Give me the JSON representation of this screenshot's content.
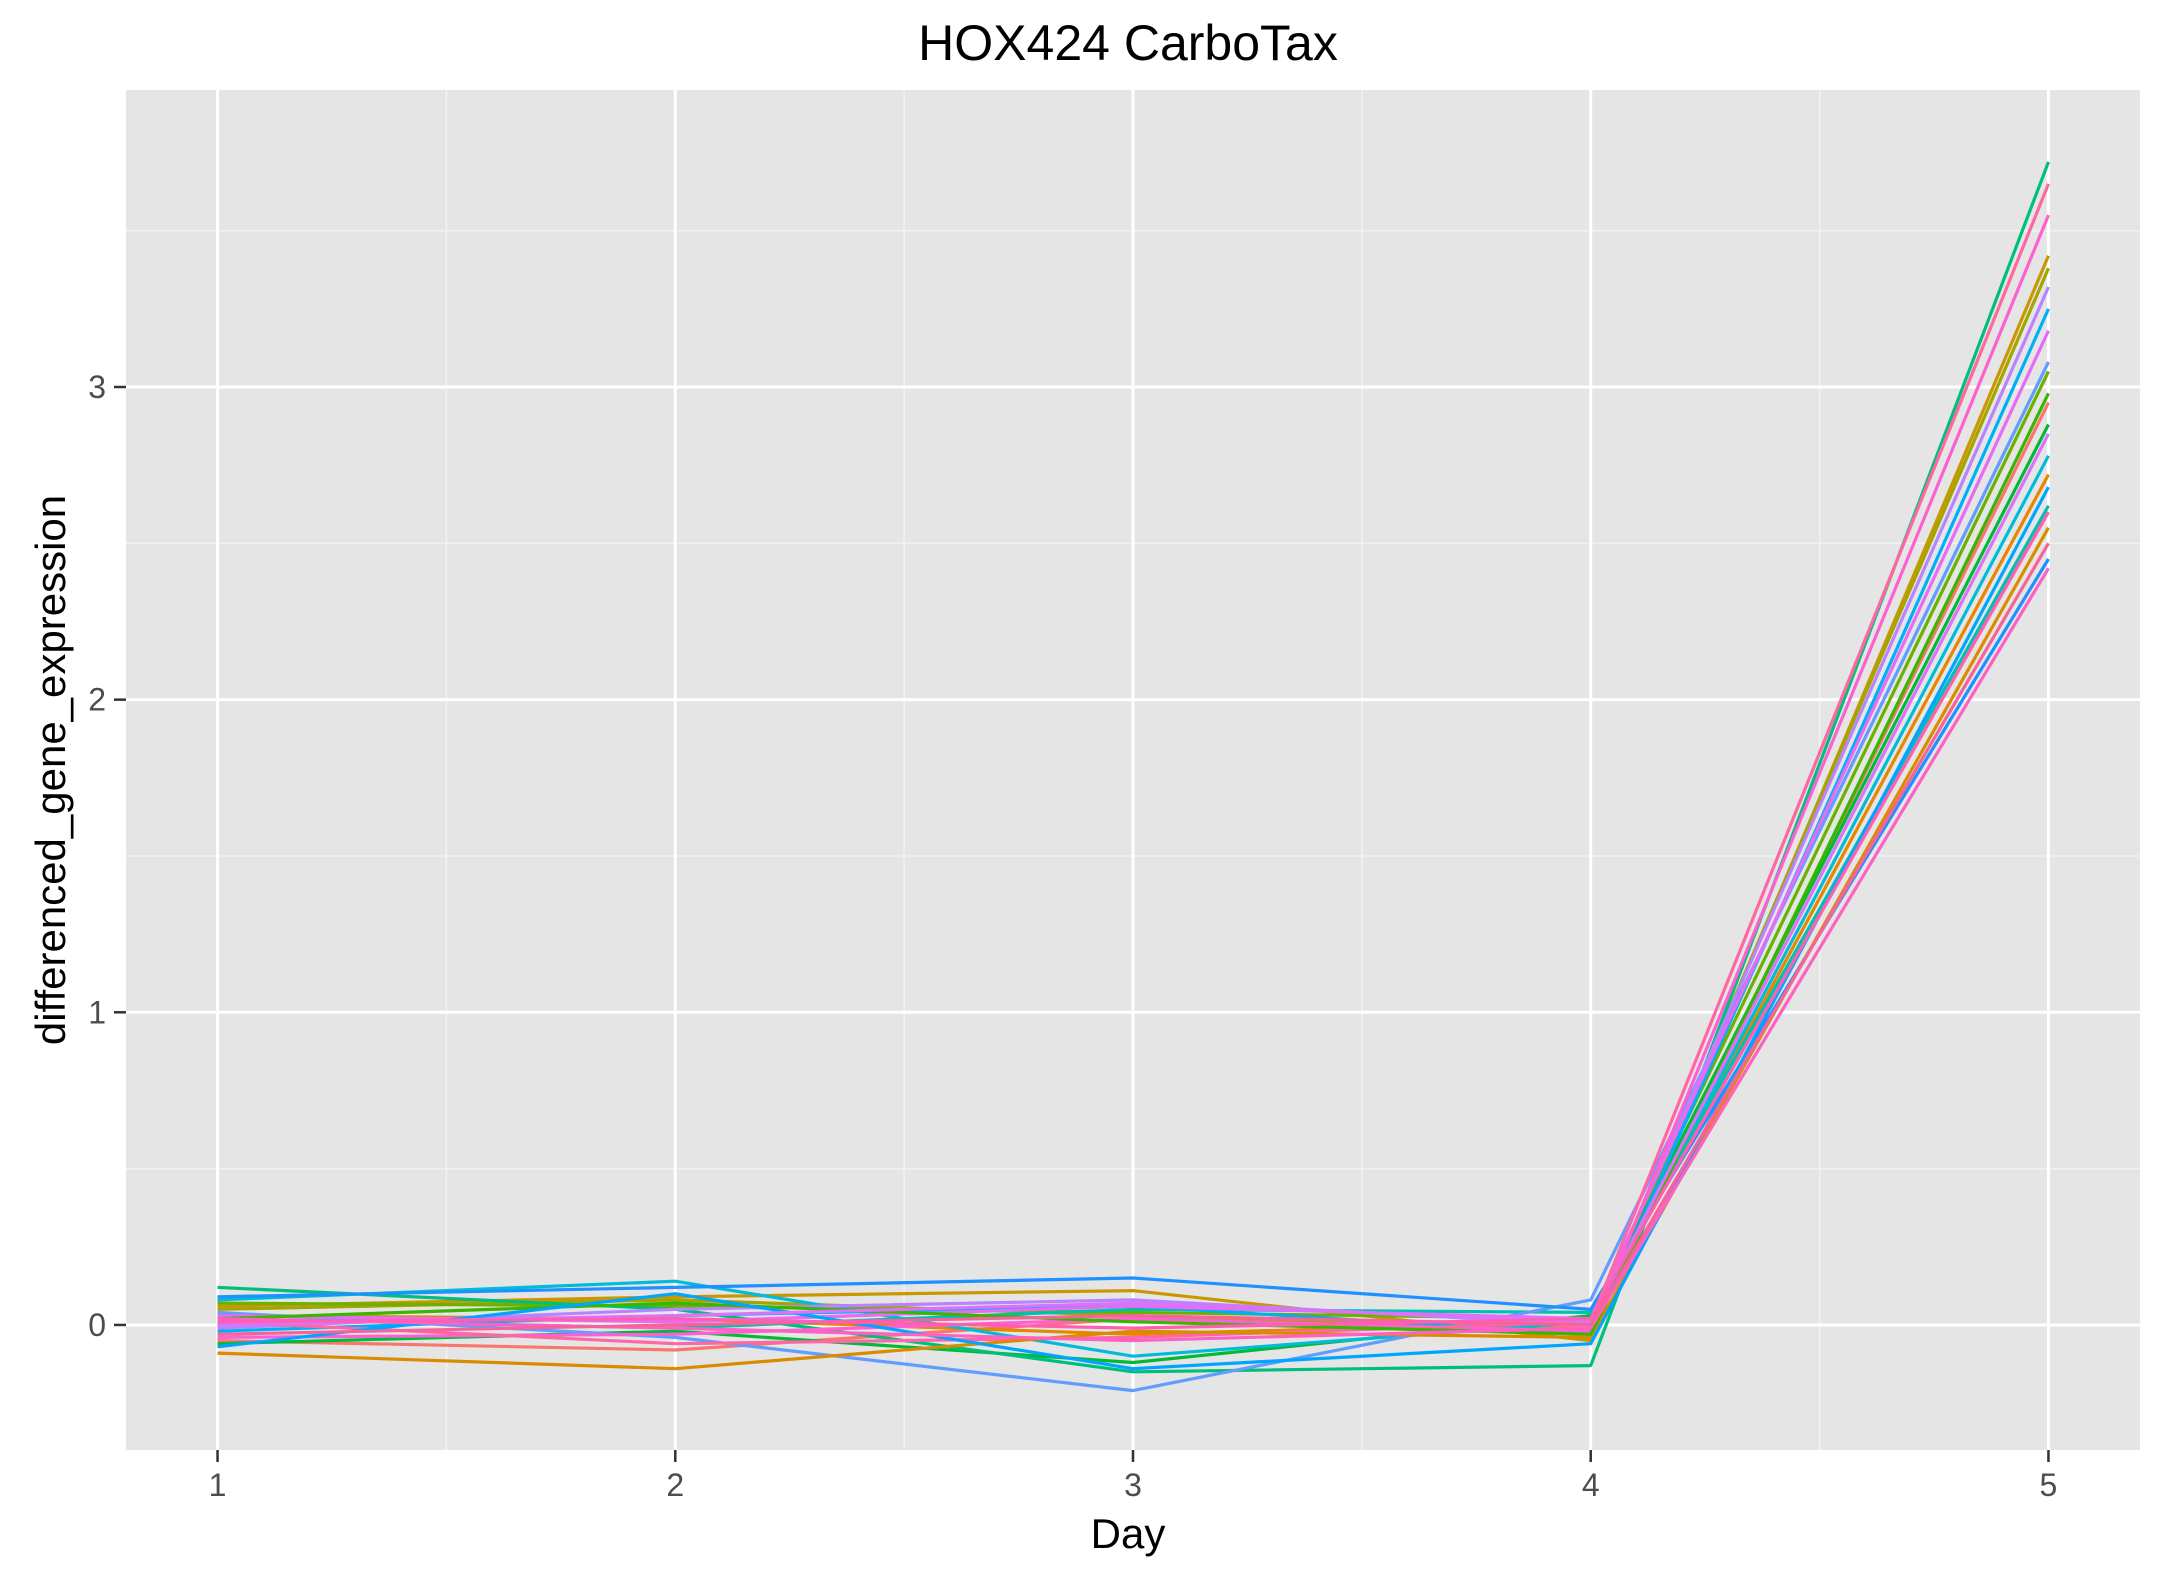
{
  "chart_data": {
    "type": "line",
    "title": "HOX424 CarboTax",
    "xlabel": "Day",
    "ylabel": "differenced_gene_expression",
    "x": [
      1,
      2,
      3,
      4,
      5
    ],
    "xlim": [
      0.8,
      5.2
    ],
    "ylim": [
      -0.4,
      3.95
    ],
    "x_ticks": [
      1,
      2,
      3,
      4,
      5
    ],
    "y_ticks": [
      0,
      1,
      2,
      3
    ],
    "grid": true,
    "legend": "none",
    "colors": {
      "panel": "#e5e5e5",
      "grid_major": "#ffffff",
      "grid_minor": "#f2f2f2"
    },
    "series": [
      {
        "color": "#F8766D",
        "values": [
          -0.05,
          -0.08,
          0.02,
          -0.01,
          2.95
        ]
      },
      {
        "color": "#E58700",
        "values": [
          0.03,
          0.02,
          -0.03,
          0.01,
          2.72
        ]
      },
      {
        "color": "#C99800",
        "values": [
          0.06,
          0.09,
          0.11,
          -0.05,
          3.42
        ]
      },
      {
        "color": "#A3A500",
        "values": [
          0.05,
          0.08,
          0.03,
          -0.02,
          3.38
        ]
      },
      {
        "color": "#6BB100",
        "values": [
          0.07,
          0.06,
          0.04,
          0.02,
          3.05
        ]
      },
      {
        "color": "#00BA38",
        "values": [
          -0.06,
          -0.02,
          -0.12,
          0.03,
          2.88
        ]
      },
      {
        "color": "#00BF7D",
        "values": [
          0.12,
          0.05,
          -0.15,
          -0.13,
          3.72
        ]
      },
      {
        "color": "#00C0AF",
        "values": [
          0.02,
          -0.01,
          0.05,
          0.04,
          2.62
        ]
      },
      {
        "color": "#00BCD8",
        "values": [
          0.08,
          0.14,
          -0.1,
          0.01,
          2.78
        ]
      },
      {
        "color": "#00B0F6",
        "values": [
          -0.02,
          0.03,
          0.06,
          -0.03,
          3.25
        ]
      },
      {
        "color": "#619CFF",
        "values": [
          0.04,
          -0.04,
          -0.21,
          0.08,
          3.08
        ]
      },
      {
        "color": "#1E90FF",
        "values": [
          0.09,
          0.12,
          0.15,
          0.05,
          2.45
        ]
      },
      {
        "color": "#B983FF",
        "values": [
          -0.01,
          0.05,
          0.08,
          0.0,
          3.32
        ]
      },
      {
        "color": "#E76BF3",
        "values": [
          0.03,
          0.01,
          0.06,
          0.02,
          3.18
        ]
      },
      {
        "color": "#FD61D1",
        "values": [
          -0.04,
          -0.03,
          0.02,
          -0.02,
          3.55
        ]
      },
      {
        "color": "#FF67A4",
        "values": [
          0.01,
          -0.06,
          -0.04,
          0.01,
          3.65
        ]
      },
      {
        "color": "#D98C00",
        "values": [
          -0.09,
          -0.14,
          -0.02,
          -0.04,
          2.55
        ]
      },
      {
        "color": "#39B600",
        "values": [
          0.02,
          0.07,
          0.01,
          -0.03,
          2.98
        ]
      },
      {
        "color": "#00A5FF",
        "values": [
          -0.07,
          0.1,
          -0.14,
          -0.06,
          2.68
        ]
      },
      {
        "color": "#DC71FA",
        "values": [
          0.0,
          0.03,
          0.07,
          0.01,
          2.85
        ]
      },
      {
        "color": "#FF61C3",
        "values": [
          0.02,
          -0.01,
          -0.05,
          -0.01,
          2.42
        ]
      },
      {
        "color": "#F4649A",
        "values": [
          -0.03,
          0.0,
          0.03,
          0.0,
          2.5
        ]
      },
      {
        "color": "#FF5FB0",
        "values": [
          0.01,
          0.02,
          -0.01,
          0.02,
          2.6
        ]
      }
    ]
  }
}
